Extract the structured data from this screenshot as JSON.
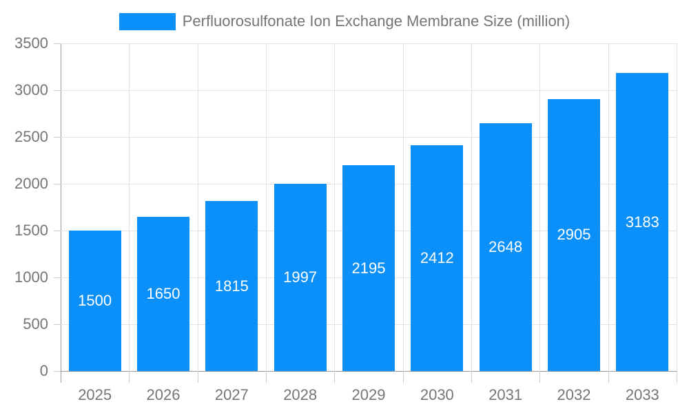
{
  "legend": {
    "label": "Perfluorosulfonate Ion Exchange Membrane Size (million)"
  },
  "chart_data": {
    "type": "bar",
    "title": "Perfluorosulfonate Ion Exchange Membrane Size (million)",
    "categories": [
      "2025",
      "2026",
      "2027",
      "2028",
      "2029",
      "2030",
      "2031",
      "2032",
      "2033"
    ],
    "values": [
      1500,
      1650,
      1815,
      1997,
      2195,
      2412,
      2648,
      2905,
      3183
    ],
    "xlabel": "",
    "ylabel": "",
    "ylim": [
      0,
      3500
    ],
    "yticks": [
      0,
      500,
      1000,
      1500,
      2000,
      2500,
      3000,
      3500
    ],
    "grid": true,
    "legend_position": "top-center",
    "value_labels": "inside-center",
    "colors": {
      "bar": "#0a90f8",
      "value_label": "#ffffff",
      "axis_text": "#757575",
      "grid_line": "#e3e3e3",
      "tick_line": "#cccccc",
      "axis_line": "#999999",
      "background": "#ffffff"
    }
  }
}
